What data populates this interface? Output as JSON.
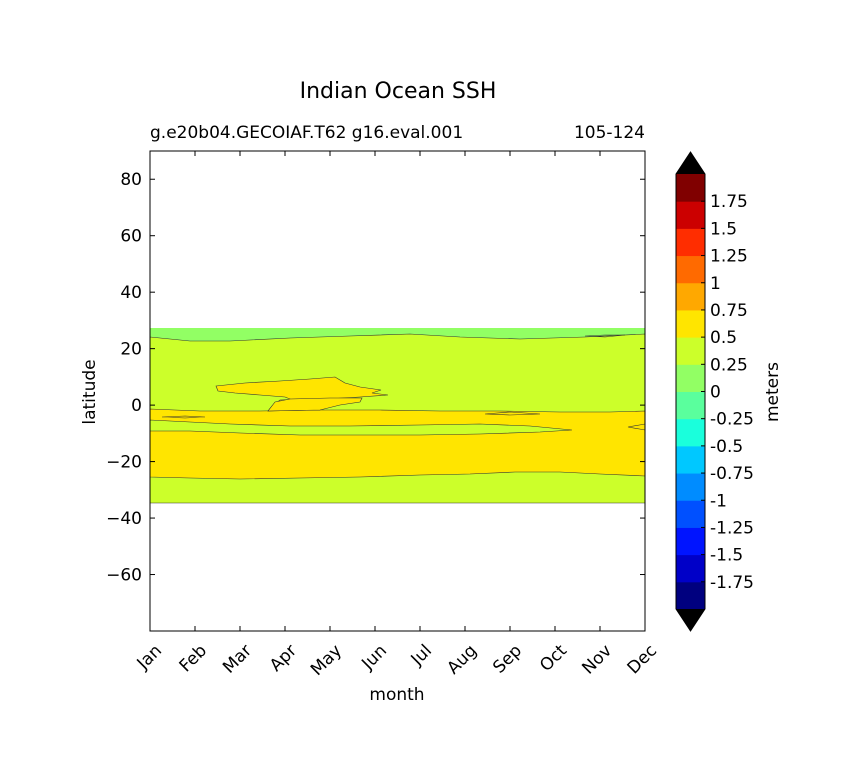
{
  "chart_data": {
    "type": "heatmap",
    "title": "Indian Ocean SSH",
    "subtitle_left": "g.e20b04.GECOIAF.T62 g16.eval.001",
    "subtitle_right": "105-124",
    "xlabel": "month",
    "ylabel": "latitude",
    "x_ticks": [
      "Jan",
      "Feb",
      "Mar",
      "Apr",
      "May",
      "Jun",
      "Jul",
      "Aug",
      "Sep",
      "Oct",
      "Nov",
      "Dec"
    ],
    "ylim": [
      -80,
      90
    ],
    "y_ticks": [
      80,
      60,
      40,
      20,
      0,
      -20,
      -40,
      -60
    ],
    "y_tick_labels": [
      "80",
      "60",
      "40",
      "20",
      "0",
      "−20",
      "−40",
      "−60"
    ],
    "data_extent_lat": [
      -34,
      28
    ],
    "colorbar": {
      "label": "meters",
      "tick_labels": [
        "1.75",
        "1.5",
        "1.25",
        "1",
        "0.75",
        "0.5",
        "0.25",
        "0",
        "-0.25",
        "-0.5",
        "-0.75",
        "-1",
        "-1.25",
        "-1.5",
        "-1.75"
      ],
      "level_colors": [
        "#00007f",
        "#0000c8",
        "#0014ff",
        "#0050ff",
        "#008cff",
        "#00c8ff",
        "#1affdc",
        "#5aff9d",
        "#92ff64",
        "#ccff2a",
        "#ffe500",
        "#ffa800",
        "#ff6a00",
        "#ff2d00",
        "#cc0000",
        "#800000"
      ],
      "extend_colors": {
        "over": "#000000",
        "under": "#000000"
      }
    },
    "regions": [
      {
        "range": "0 to 0.25",
        "color": "#92ff64",
        "lat_band": [
          24,
          28
        ]
      },
      {
        "range": "0.25 to 0.5",
        "color": "#ccff2a",
        "lat_band": [
          -34,
          24
        ]
      },
      {
        "range": "0.5 to 0.75",
        "color": "#ffe500",
        "lat_band": [
          -25,
          -2
        ]
      }
    ]
  }
}
